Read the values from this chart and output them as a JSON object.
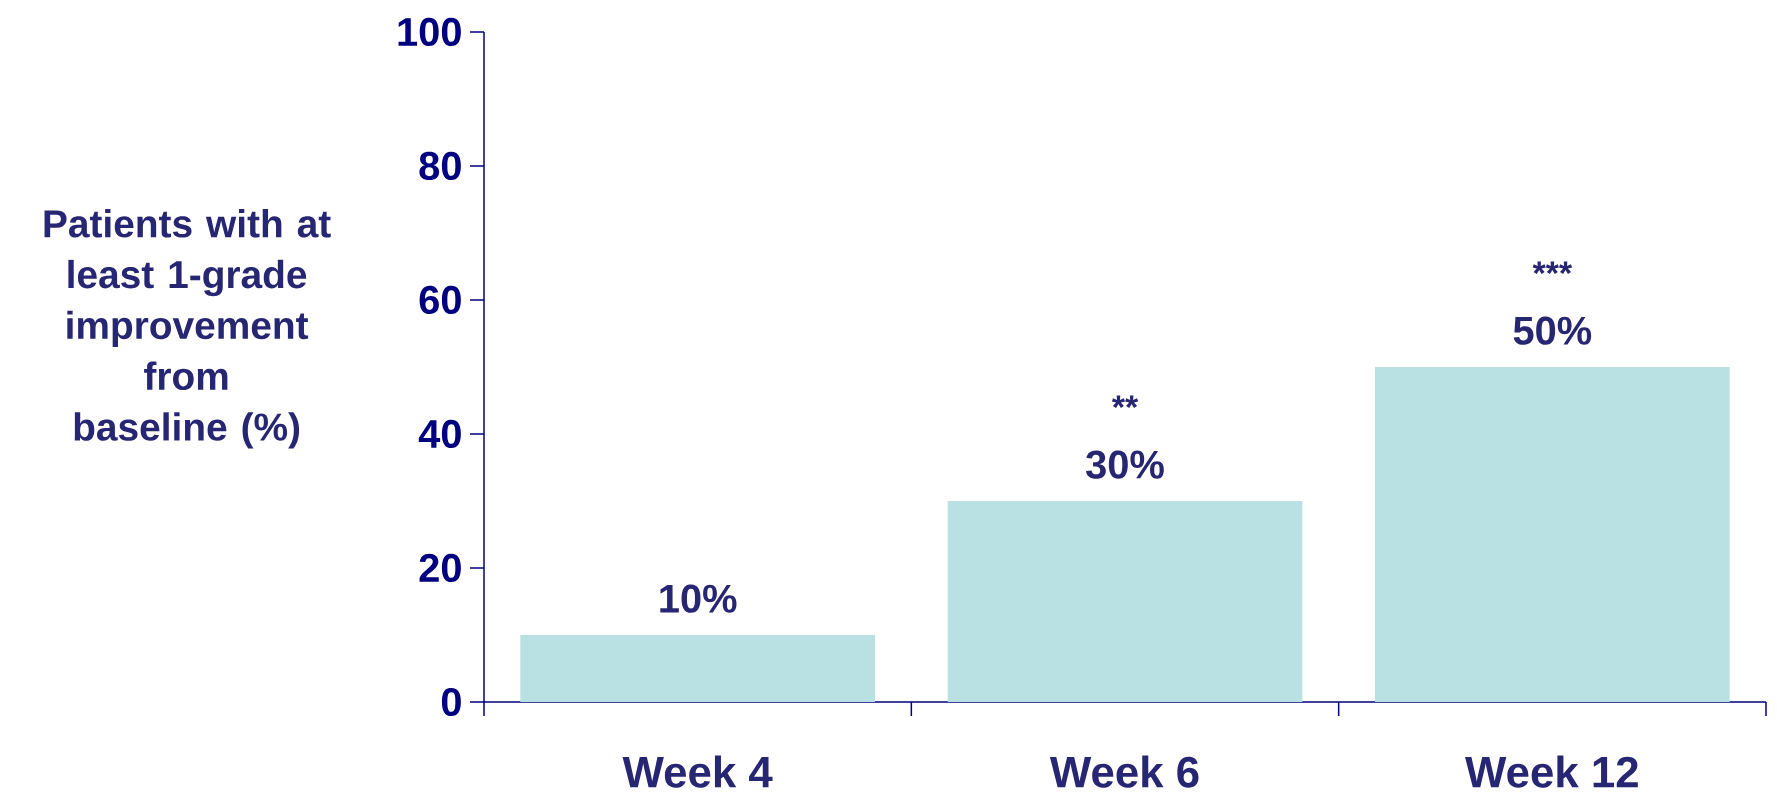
{
  "chart_data": {
    "type": "bar",
    "categories": [
      "Week 4",
      "Week 6",
      "Week 12"
    ],
    "values": [
      10,
      30,
      50
    ],
    "value_labels": [
      "10%",
      "30%",
      "50%"
    ],
    "color": "#b9e0e3",
    "ylabel": "Patients with at least 1-grade improvement from baseline (%)",
    "ylim": [
      0,
      100
    ],
    "yticks": [
      0,
      20,
      40,
      60,
      80,
      100
    ],
    "annotations": [
      "**",
      "***"
    ]
  }
}
